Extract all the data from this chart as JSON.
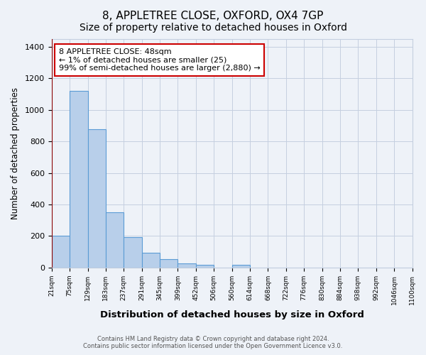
{
  "title": "8, APPLETREE CLOSE, OXFORD, OX4 7GP",
  "subtitle": "Size of property relative to detached houses in Oxford",
  "xlabel": "Distribution of detached houses by size in Oxford",
  "ylabel": "Number of detached properties",
  "bin_labels": [
    "21sqm",
    "75sqm",
    "129sqm",
    "183sqm",
    "237sqm",
    "291sqm",
    "345sqm",
    "399sqm",
    "452sqm",
    "506sqm",
    "560sqm",
    "614sqm",
    "668sqm",
    "722sqm",
    "776sqm",
    "830sqm",
    "884sqm",
    "938sqm",
    "992sqm",
    "1046sqm",
    "1100sqm"
  ],
  "bar_heights": [
    200,
    1120,
    880,
    350,
    195,
    95,
    55,
    25,
    15,
    0,
    15,
    0,
    0,
    0,
    0,
    0,
    0,
    0,
    0,
    0
  ],
  "bar_color": "#b8cfea",
  "bar_edge_color": "#5b9bd5",
  "vline_color": "#8b0000",
  "annotation_text": "8 APPLETREE CLOSE: 48sqm\n← 1% of detached houses are smaller (25)\n99% of semi-detached houses are larger (2,880) →",
  "annotation_box_color": "#ffffff",
  "annotation_box_edge_color": "#cc0000",
  "ylim": [
    0,
    1450
  ],
  "yticks": [
    0,
    200,
    400,
    600,
    800,
    1000,
    1200,
    1400
  ],
  "footer_line1": "Contains HM Land Registry data © Crown copyright and database right 2024.",
  "footer_line2": "Contains public sector information licensed under the Open Government Licence v3.0.",
  "bg_color": "#eef2f8",
  "grid_color": "#c5cfe0",
  "title_fontsize": 11,
  "subtitle_fontsize": 10
}
